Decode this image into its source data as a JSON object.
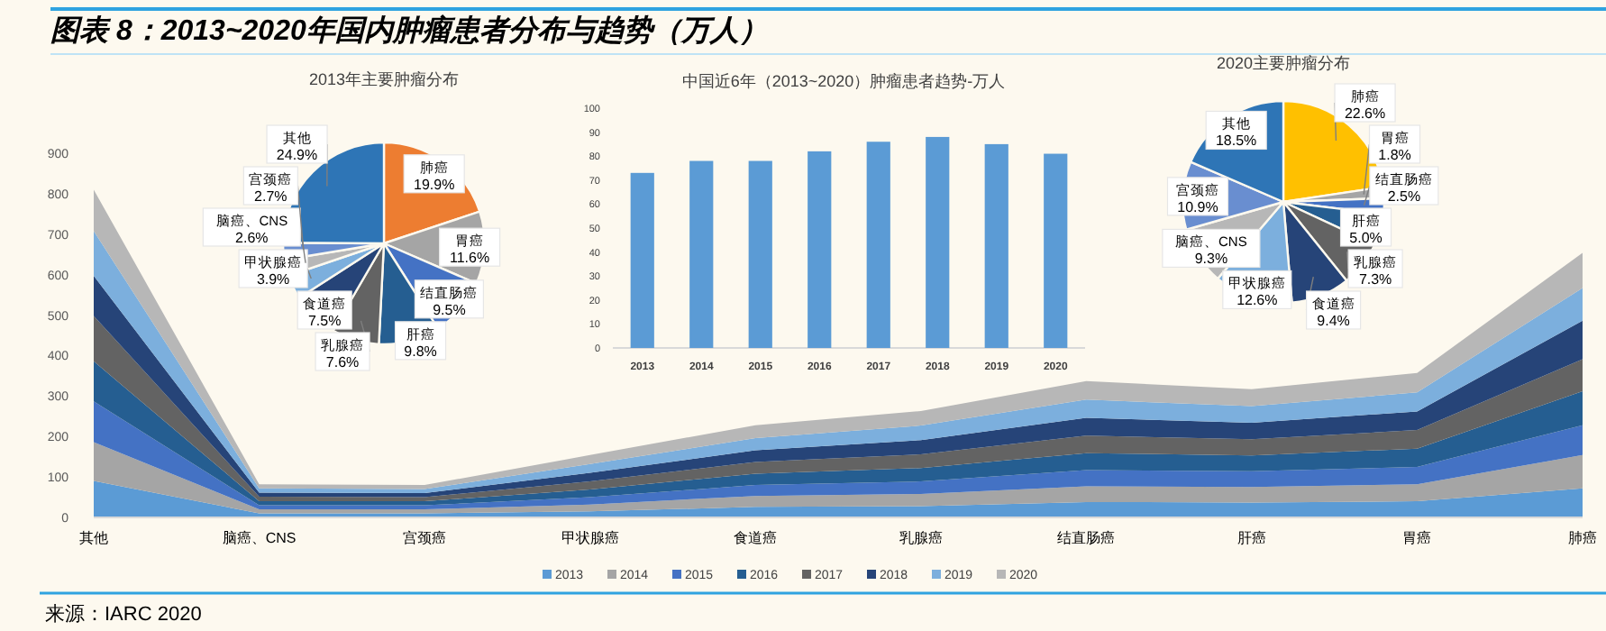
{
  "chart_data": [
    {
      "type": "area",
      "title": "图表 8：2013~2020年国内肿瘤患者分布与趋势（万人）",
      "stacked": true,
      "legend": "bottom",
      "ylim": [
        0,
        900
      ],
      "yticks": [
        0,
        100,
        200,
        300,
        400,
        500,
        600,
        700,
        800,
        900
      ],
      "categories": [
        "其他",
        "脑癌、CNS",
        "宫颈癌",
        "甲状腺癌",
        "食道癌",
        "乳腺癌",
        "结直肠癌",
        "肝癌",
        "胃癌",
        "肺癌"
      ],
      "series": [
        {
          "name": "2013",
          "color": "#5b9bd5",
          "values": [
            90,
            10,
            10,
            15,
            26,
            28,
            38,
            37,
            40,
            72
          ]
        },
        {
          "name": "2014",
          "color": "#a5a5a5",
          "values": [
            96,
            10,
            10,
            17,
            27,
            30,
            39,
            38,
            42,
            82
          ]
        },
        {
          "name": "2015",
          "color": "#4472c4",
          "values": [
            101,
            10,
            10,
            18,
            27,
            31,
            40,
            39,
            43,
            74
          ]
        },
        {
          "name": "2016",
          "color": "#255e91",
          "values": [
            99,
            10,
            10,
            19,
            28,
            33,
            42,
            39,
            45,
            84
          ]
        },
        {
          "name": "2017",
          "color": "#636363",
          "values": [
            112,
            11,
            10,
            20,
            29,
            34,
            43,
            40,
            46,
            79
          ]
        },
        {
          "name": "2018",
          "color": "#264478",
          "values": [
            99,
            10,
            10,
            21,
            29,
            35,
            44,
            41,
            46,
            95
          ]
        },
        {
          "name": "2019",
          "color": "#7cafdd",
          "values": [
            111,
            11,
            10,
            22,
            30,
            36,
            45,
            41,
            47,
            81
          ]
        },
        {
          "name": "2020",
          "color": "#b7b7b7",
          "values": [
            102,
            10,
            10,
            22,
            32,
            36,
            46,
            42,
            48,
            87
          ]
        }
      ],
      "annotations": [
        "来源：IARC 2020"
      ]
    },
    {
      "type": "pie",
      "title": "2013年主要肿瘤分布",
      "categories": [
        "肺癌",
        "胃癌",
        "结直肠癌",
        "肝癌",
        "乳腺癌",
        "食道癌",
        "甲状腺癌",
        "脑癌、CNS",
        "宫颈癌",
        "其他"
      ],
      "values": [
        19.9,
        11.6,
        9.5,
        9.8,
        7.6,
        7.5,
        3.9,
        2.6,
        2.7,
        24.9
      ],
      "value_labels": [
        "19.9%",
        "11.6%",
        "9.5%",
        "9.8%",
        "7.6%",
        "7.5%",
        "3.9%",
        "2.6%",
        "2.7%",
        "24.9%"
      ],
      "colors": [
        "#ed7d31",
        "#a5a5a5",
        "#4472c4",
        "#255e91",
        "#636363",
        "#264478",
        "#7cafdd",
        "#b7b7b7",
        "#698ed0",
        "#2e75b6"
      ]
    },
    {
      "type": "bar",
      "title": "中国近6年（2013~2020）肿瘤患者趋势-万人",
      "color": "#5b9bd5",
      "categories": [
        "2013",
        "2014",
        "2015",
        "2016",
        "2017",
        "2018",
        "2019",
        "2020"
      ],
      "values": [
        73,
        78,
        78,
        82,
        86,
        88,
        85,
        81
      ],
      "ylim": [
        0,
        100
      ],
      "yticks": [
        0,
        10,
        20,
        30,
        40,
        50,
        60,
        70,
        80,
        90,
        100
      ]
    },
    {
      "type": "pie",
      "title": "2020主要肿瘤分布",
      "categories": [
        "肺癌",
        "胃癌",
        "结直肠癌",
        "肝癌",
        "乳腺癌",
        "食道癌",
        "甲状腺癌",
        "脑癌、CNS",
        "宫颈癌",
        "其他"
      ],
      "values": [
        22.6,
        1.8,
        2.5,
        5.0,
        7.3,
        9.4,
        12.6,
        9.3,
        10.9,
        18.5
      ],
      "value_labels": [
        "22.6%",
        "1.8%",
        "2.5%",
        "5.0%",
        "7.3%",
        "9.4%",
        "12.6%",
        "9.3%",
        "10.9%",
        "18.5%"
      ],
      "colors": [
        "#ffc000",
        "#a5a5a5",
        "#4472c4",
        "#255e91",
        "#636363",
        "#264478",
        "#7cafdd",
        "#b7b7b7",
        "#698ed0",
        "#2e75b6"
      ]
    }
  ]
}
